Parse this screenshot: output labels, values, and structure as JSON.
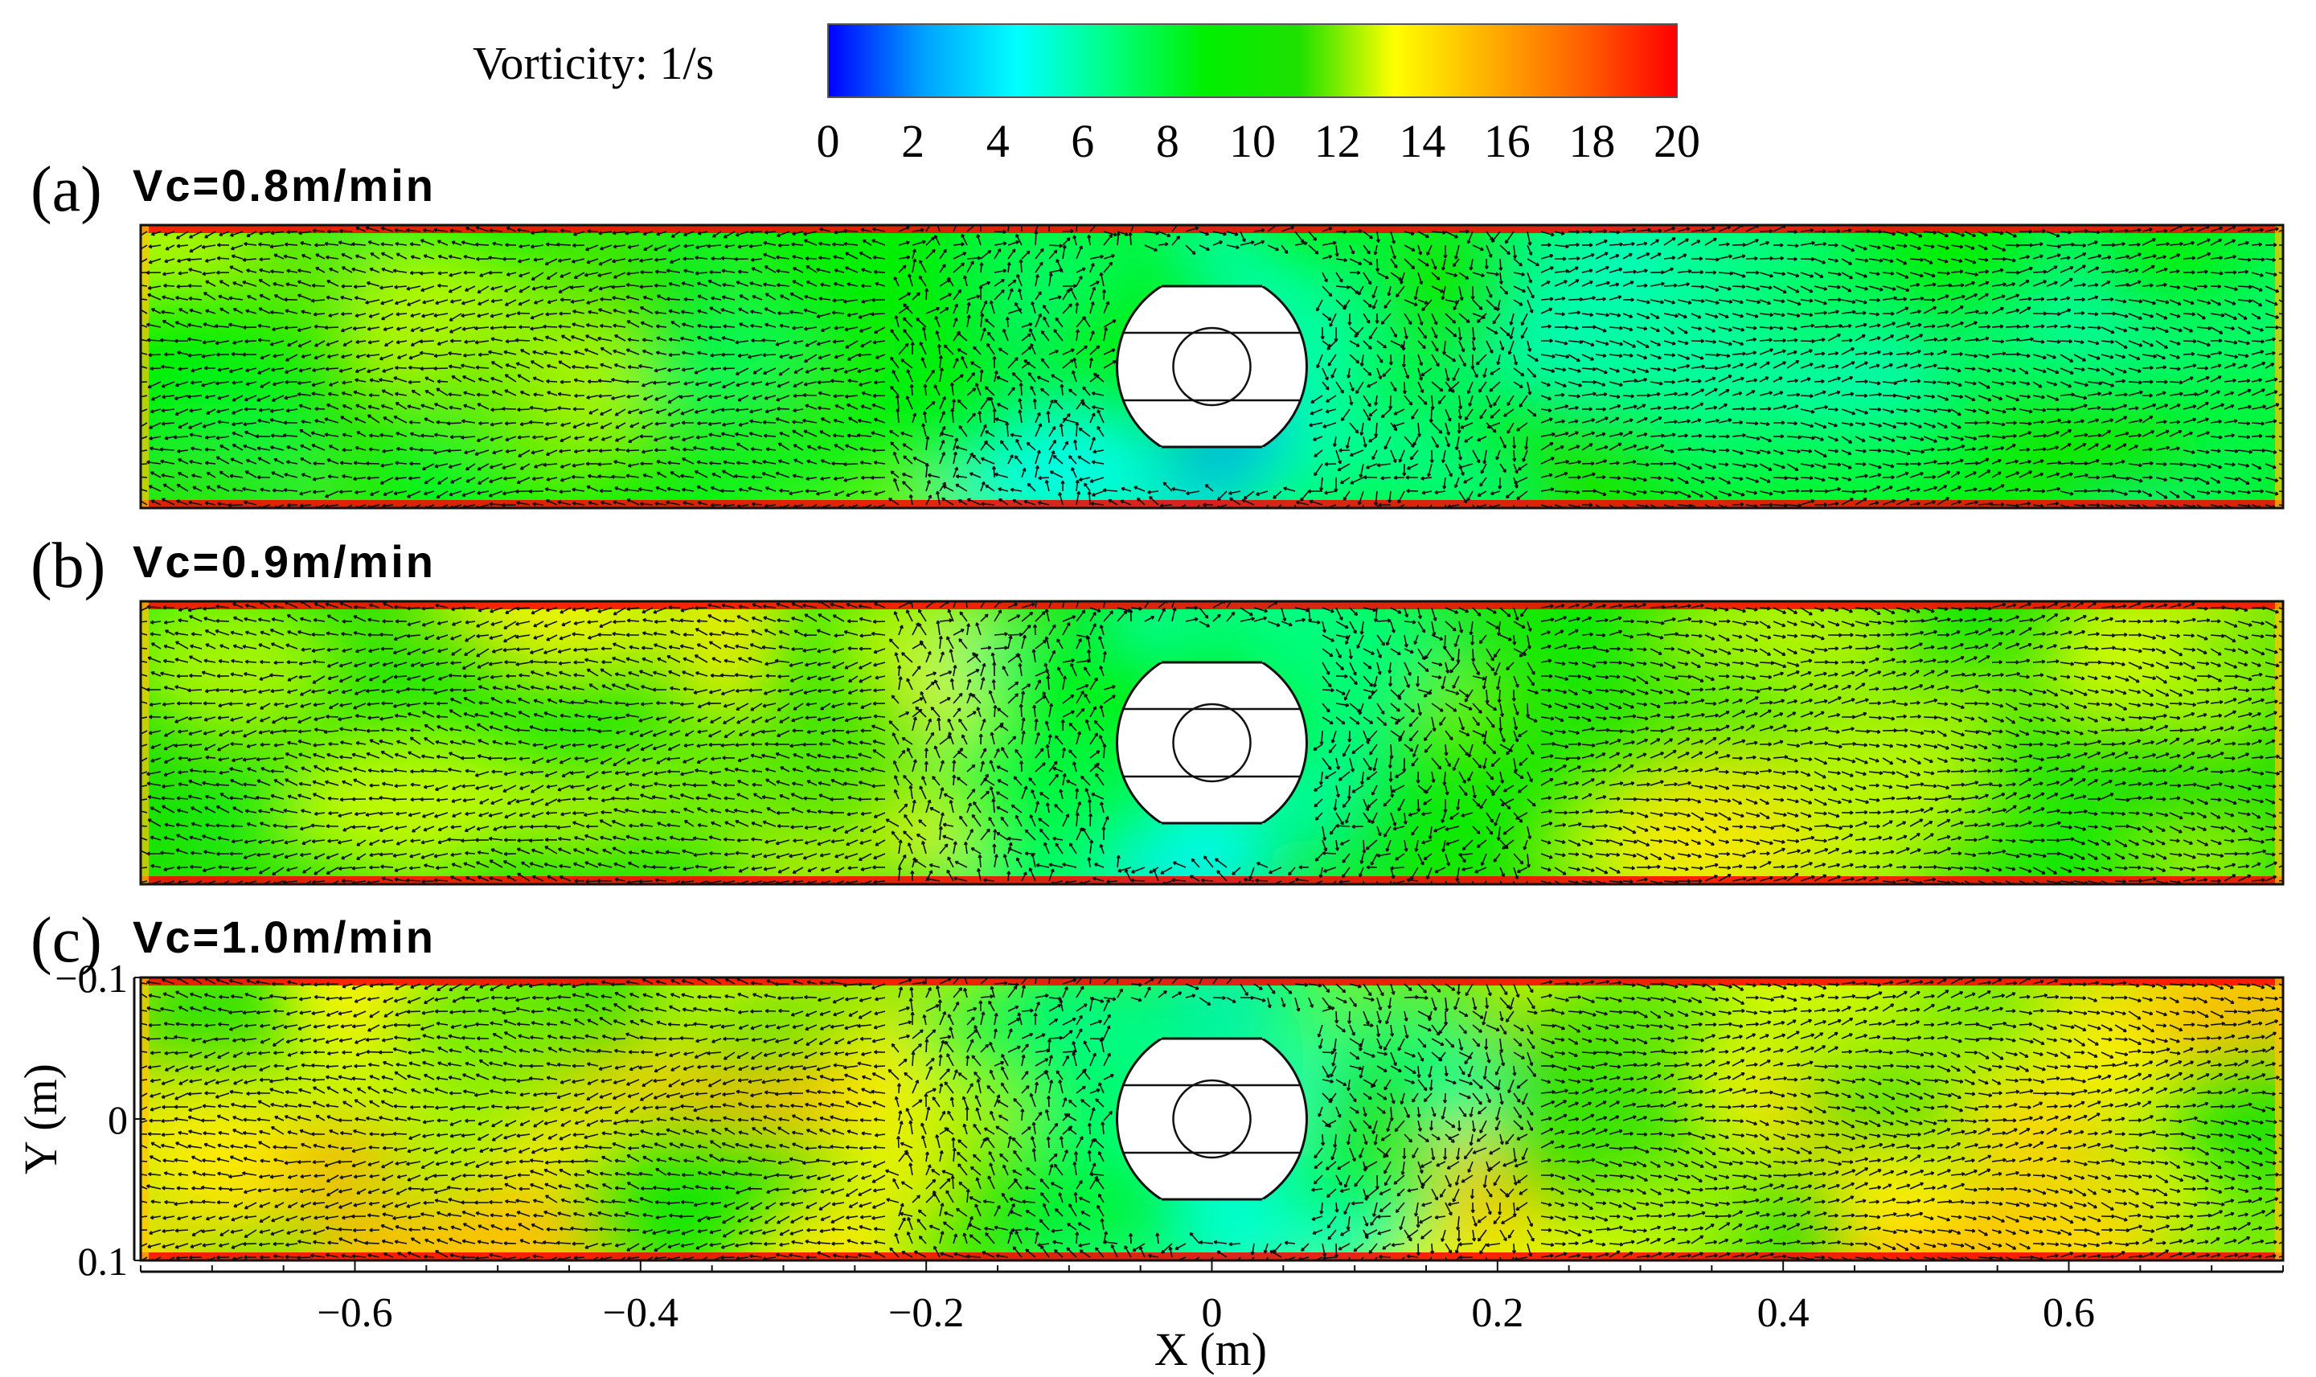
{
  "colorbar": {
    "label": "Vorticity: 1/s",
    "ticks": [
      "0",
      "2",
      "4",
      "6",
      "8",
      "10",
      "12",
      "14",
      "16",
      "18",
      "20"
    ],
    "range": [
      0,
      20
    ],
    "stops": [
      "#0000ff",
      "#00a0ff",
      "#00ffff",
      "#00ff80",
      "#00f000",
      "#20e000",
      "#ffff00",
      "#ffb000",
      "#ff6000",
      "#ff0000"
    ]
  },
  "chart_data": [
    {
      "type": "heatmap",
      "panel": "(a)",
      "title": "Vc=0.8m/min",
      "quantity": "vorticity (1/s) with velocity vectors",
      "xlim": [
        -0.75,
        0.75
      ],
      "ylim": [
        -0.1,
        0.1
      ],
      "obstacle": "white circular body with inner ring at x=0, y=0",
      "wall_vorticity": 20,
      "core_vorticity_left": 10,
      "core_vorticity_center": 5,
      "core_vorticity_right": 8
    },
    {
      "type": "heatmap",
      "panel": "(b)",
      "title": "Vc=0.9m/min",
      "quantity": "vorticity (1/s) with velocity vectors",
      "xlim": [
        -0.75,
        0.75
      ],
      "ylim": [
        -0.1,
        0.1
      ],
      "obstacle": "white circular body with inner ring at x=0, y=0",
      "wall_vorticity": 20,
      "core_vorticity_left": 11,
      "core_vorticity_center": 6,
      "core_vorticity_right": 11
    },
    {
      "type": "heatmap",
      "panel": "(c)",
      "title": "Vc=1.0m/min",
      "quantity": "vorticity (1/s) with velocity vectors",
      "xlim": [
        -0.75,
        0.75
      ],
      "ylim": [
        -0.1,
        0.1
      ],
      "obstacle": "white circular body with inner ring at x=0, y=0",
      "wall_vorticity": 20,
      "core_vorticity_left": 13,
      "core_vorticity_center": 6,
      "core_vorticity_right": 13,
      "xlabel": "X (m)",
      "ylabel": "Y (m)",
      "xticks": [
        "-0.6",
        "-0.4",
        "-0.2",
        "0",
        "0.2",
        "0.4",
        "0.6"
      ],
      "yticks": [
        "-0.1",
        "0",
        "0.1"
      ]
    }
  ]
}
